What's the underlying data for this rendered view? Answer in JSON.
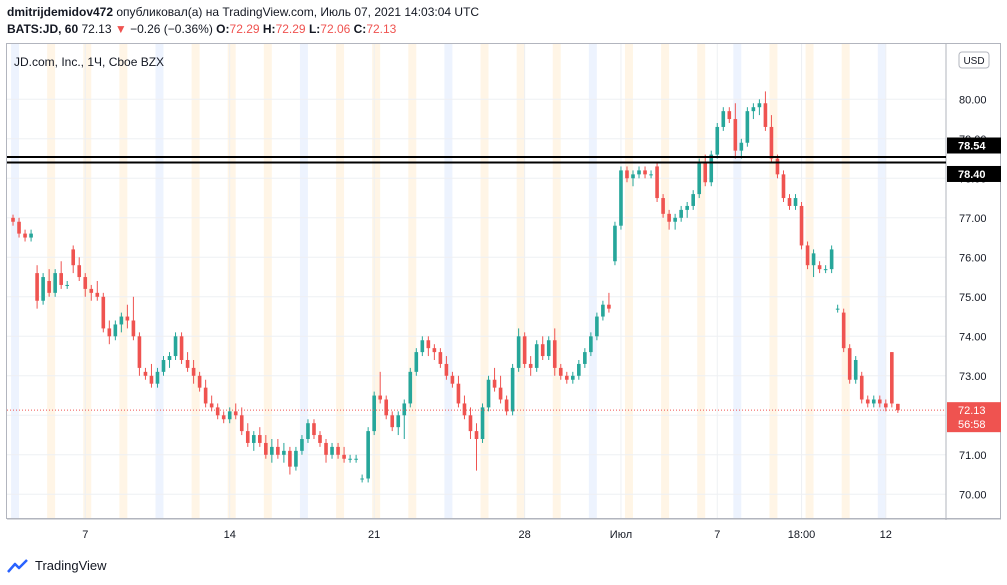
{
  "header": {
    "user": "dmitrijdemidov472",
    "published_text": "опубликовал(а) на TradingView.com, Июль 07, 2021 14:03:04 UTC",
    "symbol_line": "BATS:JD, 60",
    "last": "72.13",
    "change_arrow": "▼",
    "change": "−0.26 (−0.36%)",
    "o_label": "O:",
    "o_value": "72.29",
    "h_label": "H:",
    "h_value": "72.29",
    "l_label": "L:",
    "l_value": "72.06",
    "c_label": "C:",
    "c_value": "72.13"
  },
  "footer": {
    "brand": "TradingView"
  },
  "colors": {
    "up": "#26a69a",
    "down": "#ef5350",
    "grid": "#eef0f3",
    "axis_text": "#131722",
    "hline": "#000000",
    "session_orange": "#fff3e0",
    "session_blue": "#e8f0fe"
  },
  "chart_data": {
    "type": "candlestick",
    "title": "JD.com, Inc., 1Ч, Cboe BZX",
    "currency_badge": "USD",
    "y_ticks": [
      "70.00",
      "71.00",
      "72.00",
      "73.00",
      "74.00",
      "75.00",
      "76.00",
      "77.00",
      "78.00",
      "79.00",
      "80.00"
    ],
    "ylim": [
      69.4,
      81.4
    ],
    "x_ticks": [
      {
        "label": "7",
        "i": 12
      },
      {
        "label": "14",
        "i": 36
      },
      {
        "label": "21",
        "i": 60
      },
      {
        "label": "28",
        "i": 85
      },
      {
        "label": "Июл",
        "i": 101
      },
      {
        "label": "7",
        "i": 117
      },
      {
        "label": "18:00",
        "i": 131
      },
      {
        "label": "12",
        "i": 145
      }
    ],
    "x_range": [
      -1,
      155
    ],
    "horizontal_lines": [
      {
        "value": 78.54,
        "label": "78.54"
      },
      {
        "value": 78.4,
        "label": "78.40"
      }
    ],
    "last_price": {
      "value": 72.13,
      "label": "72.13",
      "countdown": "56:58"
    },
    "candles": [
      [
        77.0,
        77.08,
        76.8,
        76.9
      ],
      [
        76.9,
        77.0,
        76.5,
        76.6
      ],
      [
        76.6,
        76.7,
        76.4,
        76.5
      ],
      [
        76.5,
        76.7,
        76.4,
        76.6
      ],
      [
        75.6,
        75.8,
        74.7,
        74.9
      ],
      [
        74.9,
        75.6,
        74.8,
        75.5
      ],
      [
        75.4,
        75.7,
        75.0,
        75.1
      ],
      [
        75.1,
        75.7,
        75.0,
        75.6
      ],
      [
        75.6,
        75.9,
        75.2,
        75.3
      ],
      [
        75.3,
        75.4,
        75.2,
        75.3
      ],
      [
        76.2,
        76.3,
        75.6,
        75.8
      ],
      [
        75.8,
        76.0,
        75.4,
        75.5
      ],
      [
        75.5,
        75.6,
        75.0,
        75.2
      ],
      [
        75.2,
        75.3,
        74.9,
        75.1
      ],
      [
        75.1,
        75.4,
        74.9,
        75.0
      ],
      [
        75.0,
        75.1,
        74.1,
        74.2
      ],
      [
        74.2,
        74.4,
        73.8,
        74.0
      ],
      [
        74.0,
        74.4,
        73.9,
        74.3
      ],
      [
        74.3,
        74.6,
        74.1,
        74.5
      ],
      [
        74.5,
        74.8,
        74.2,
        74.4
      ],
      [
        74.4,
        75.0,
        73.9,
        74.0
      ],
      [
        74.0,
        74.1,
        73.0,
        73.2
      ],
      [
        73.1,
        73.2,
        72.9,
        73.0
      ],
      [
        73.0,
        73.3,
        72.7,
        72.8
      ],
      [
        72.8,
        73.2,
        72.7,
        73.1
      ],
      [
        73.1,
        73.5,
        73.0,
        73.4
      ],
      [
        73.4,
        73.6,
        73.2,
        73.5
      ],
      [
        73.5,
        74.1,
        73.4,
        74.0
      ],
      [
        74.0,
        74.1,
        73.3,
        73.4
      ],
      [
        73.4,
        73.6,
        73.1,
        73.2
      ],
      [
        73.2,
        73.4,
        72.8,
        73.0
      ],
      [
        73.0,
        73.1,
        72.6,
        72.7
      ],
      [
        72.7,
        72.9,
        72.2,
        72.3
      ],
      [
        72.3,
        72.5,
        72.1,
        72.2
      ],
      [
        72.2,
        72.3,
        71.9,
        72.0
      ],
      [
        72.0,
        72.1,
        71.8,
        71.9
      ],
      [
        71.9,
        72.2,
        71.8,
        72.1
      ],
      [
        72.1,
        72.3,
        71.9,
        72.0
      ],
      [
        72.0,
        72.2,
        71.5,
        71.6
      ],
      [
        71.6,
        71.8,
        71.2,
        71.3
      ],
      [
        71.3,
        71.6,
        71.1,
        71.5
      ],
      [
        71.5,
        71.7,
        71.2,
        71.3
      ],
      [
        71.3,
        71.5,
        70.9,
        71.0
      ],
      [
        71.0,
        71.4,
        70.8,
        71.2
      ],
      [
        71.2,
        71.4,
        70.9,
        71.0
      ],
      [
        71.0,
        71.3,
        70.8,
        71.1
      ],
      [
        71.1,
        71.2,
        70.5,
        70.7
      ],
      [
        70.7,
        71.2,
        70.6,
        71.1
      ],
      [
        71.1,
        71.5,
        71.0,
        71.4
      ],
      [
        71.4,
        71.9,
        71.3,
        71.8
      ],
      [
        71.8,
        71.9,
        71.4,
        71.5
      ],
      [
        71.5,
        71.6,
        71.2,
        71.3
      ],
      [
        71.3,
        71.4,
        70.8,
        71.0
      ],
      [
        71.0,
        71.3,
        70.9,
        71.2
      ],
      [
        71.2,
        71.3,
        70.9,
        71.0
      ],
      [
        71.0,
        71.2,
        70.8,
        70.9
      ],
      [
        70.9,
        71.0,
        70.8,
        70.9
      ],
      [
        70.9,
        71.0,
        70.8,
        70.9
      ],
      [
        70.4,
        70.5,
        70.3,
        70.4
      ],
      [
        70.4,
        71.7,
        70.3,
        71.6
      ],
      [
        71.6,
        72.6,
        71.5,
        72.5
      ],
      [
        72.5,
        73.1,
        72.3,
        72.4
      ],
      [
        72.4,
        72.5,
        71.9,
        72.0
      ],
      [
        72.0,
        72.1,
        71.6,
        71.7
      ],
      [
        71.7,
        72.1,
        71.5,
        72.0
      ],
      [
        72.0,
        72.4,
        71.4,
        72.3
      ],
      [
        72.3,
        73.2,
        72.2,
        73.1
      ],
      [
        73.1,
        73.7,
        73.0,
        73.6
      ],
      [
        73.6,
        74.0,
        73.5,
        73.9
      ],
      [
        73.9,
        74.0,
        73.5,
        73.7
      ],
      [
        73.7,
        73.8,
        73.4,
        73.6
      ],
      [
        73.6,
        73.7,
        73.2,
        73.3
      ],
      [
        73.3,
        73.5,
        72.9,
        73.0
      ],
      [
        73.0,
        73.1,
        72.7,
        72.8
      ],
      [
        72.8,
        73.0,
        72.2,
        72.3
      ],
      [
        72.3,
        72.5,
        71.9,
        72.0
      ],
      [
        72.0,
        72.2,
        71.4,
        71.6
      ],
      [
        71.6,
        71.8,
        70.6,
        71.4
      ],
      [
        71.4,
        72.3,
        71.3,
        72.2
      ],
      [
        72.2,
        73.0,
        72.1,
        72.9
      ],
      [
        72.9,
        73.2,
        72.6,
        72.7
      ],
      [
        72.7,
        73.0,
        72.3,
        72.4
      ],
      [
        72.4,
        72.5,
        72.0,
        72.1
      ],
      [
        72.1,
        73.3,
        72.0,
        73.2
      ],
      [
        73.2,
        74.2,
        73.1,
        74.0
      ],
      [
        74.0,
        74.1,
        73.2,
        73.3
      ],
      [
        73.3,
        73.5,
        73.0,
        73.2
      ],
      [
        73.2,
        73.9,
        73.1,
        73.8
      ],
      [
        73.8,
        74.0,
        73.4,
        73.5
      ],
      [
        73.5,
        74.0,
        73.4,
        73.9
      ],
      [
        73.9,
        74.2,
        73.0,
        73.2
      ],
      [
        73.2,
        73.3,
        72.9,
        73.0
      ],
      [
        73.0,
        73.1,
        72.8,
        72.9
      ],
      [
        72.9,
        73.1,
        72.8,
        73.0
      ],
      [
        73.0,
        73.4,
        72.9,
        73.3
      ],
      [
        73.3,
        73.7,
        73.2,
        73.6
      ]
    ],
    "candles_b": [
      [
        73.6,
        74.1,
        73.5,
        74.0
      ],
      [
        74.0,
        74.6,
        73.9,
        74.5
      ],
      [
        74.5,
        74.9,
        74.4,
        74.8
      ],
      [
        74.8,
        75.1,
        74.6,
        74.7
      ],
      [
        75.9,
        76.9,
        75.8,
        76.8
      ],
      [
        76.8,
        78.3,
        76.7,
        78.2
      ],
      [
        78.2,
        78.3,
        77.9,
        78.0
      ],
      [
        78.0,
        78.2,
        77.8,
        78.1
      ],
      [
        78.1,
        78.3,
        78.0,
        78.2
      ],
      [
        78.2,
        78.3,
        78.0,
        78.1
      ],
      [
        78.1,
        78.2,
        78.0,
        78.1
      ],
      [
        78.3,
        78.4,
        77.4,
        77.5
      ],
      [
        77.5,
        77.6,
        77.0,
        77.1
      ],
      [
        77.1,
        77.2,
        76.7,
        76.9
      ],
      [
        76.9,
        77.1,
        76.7,
        77.0
      ],
      [
        77.0,
        77.3,
        76.9,
        77.2
      ],
      [
        77.2,
        77.4,
        77.0,
        77.3
      ],
      [
        77.3,
        77.7,
        77.2,
        77.6
      ],
      [
        77.6,
        78.5,
        77.5,
        78.4
      ],
      [
        78.4,
        78.6,
        77.8,
        77.9
      ],
      [
        77.9,
        78.7,
        77.8,
        78.6
      ],
      [
        78.6,
        79.4,
        78.5,
        79.3
      ],
      [
        79.3,
        79.8,
        79.2,
        79.7
      ],
      [
        79.7,
        79.8,
        79.4,
        79.5
      ],
      [
        79.5,
        79.9,
        78.5,
        78.7
      ],
      [
        78.7,
        79.0,
        78.5,
        78.9
      ],
      [
        78.9,
        79.8,
        78.8,
        79.7
      ],
      [
        79.7,
        79.9,
        79.5,
        79.8
      ],
      [
        79.8,
        80.0,
        79.6,
        79.9
      ],
      [
        79.9,
        80.2,
        79.2,
        79.3
      ],
      [
        79.3,
        79.6,
        78.4,
        78.5
      ],
      [
        78.5,
        78.6,
        78.0,
        78.1
      ],
      [
        78.1,
        78.2,
        77.4,
        77.5
      ],
      [
        77.5,
        77.6,
        77.2,
        77.3
      ],
      [
        77.3,
        77.6,
        77.2,
        77.5
      ],
      [
        77.3,
        77.4,
        76.2,
        76.3
      ],
      [
        76.3,
        76.4,
        75.7,
        75.8
      ],
      [
        75.8,
        76.2,
        75.5,
        76.1
      ],
      [
        75.8,
        75.9,
        75.6,
        75.7
      ],
      [
        75.7,
        75.8,
        75.6,
        75.7
      ],
      [
        75.7,
        76.3,
        75.6,
        76.2
      ],
      [
        74.7,
        74.8,
        74.6,
        74.7
      ],
      [
        74.6,
        74.7,
        73.6,
        73.7
      ],
      [
        73.7,
        73.8,
        72.8,
        72.9
      ],
      [
        72.9,
        73.5,
        72.8,
        73.4
      ],
      [
        73.0,
        73.1,
        72.3,
        72.4
      ],
      [
        72.4,
        72.5,
        72.2,
        72.3
      ],
      [
        72.3,
        72.5,
        72.2,
        72.4
      ],
      [
        72.4,
        72.5,
        72.2,
        72.3
      ],
      [
        72.3,
        72.4,
        72.1,
        72.2
      ],
      [
        73.6,
        73.6,
        72.2,
        72.3
      ],
      [
        72.29,
        72.29,
        72.06,
        72.13
      ]
    ]
  }
}
